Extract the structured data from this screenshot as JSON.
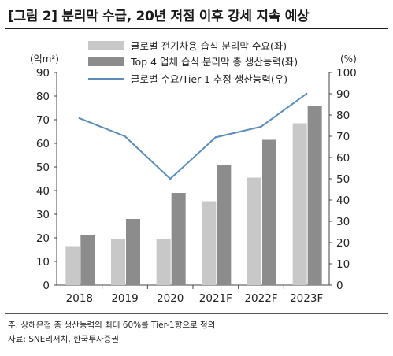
{
  "header": {
    "title": "[그림 2] 분리막 수급, 20년 저점 이후 강세 지속 예상"
  },
  "footer": {
    "note": "주: 상해은첩 총 생산능력의 최대 60%를 Tier-1향으로 정의",
    "source": "자료: SNE리서치, 한국투자증권"
  },
  "chart_data": {
    "type": "bar",
    "title": "[그림 2] 분리막 수급, 20년 저점 이후 강세 지속 예상",
    "categories": [
      "2018",
      "2019",
      "2020",
      "2021F",
      "2022F",
      "2023F"
    ],
    "y_left": {
      "unit": "(억m²)",
      "ylim": [
        0,
        90
      ],
      "ticks": [
        "0",
        "10",
        "20",
        "30",
        "40",
        "50",
        "60",
        "70",
        "80",
        "90"
      ]
    },
    "y_right": {
      "unit": "(%)",
      "ylim": [
        0,
        100
      ],
      "ticks": [
        "0",
        "10",
        "20",
        "30",
        "40",
        "50",
        "60",
        "70",
        "80",
        "90",
        "100"
      ]
    },
    "series": [
      {
        "name": "글로벌 전기차용 습식 분리막 수요(좌)",
        "type": "bar",
        "axis": "left",
        "color": "#c8c8c8",
        "values": [
          16.5,
          19.5,
          19.5,
          35.5,
          45.5,
          68.5
        ]
      },
      {
        "name": "Top 4 업체 습식 분리막 총 생산능력(좌)",
        "type": "bar",
        "axis": "left",
        "color": "#8c8c8c",
        "values": [
          21,
          28,
          39,
          51,
          61.5,
          76
        ]
      },
      {
        "name": "글로벌 수요/Tier-1 추정 생산능력(우)",
        "type": "line",
        "axis": "right",
        "color": "#5b8db8",
        "values": [
          78.5,
          70,
          50,
          69.5,
          74.5,
          90
        ]
      }
    ],
    "grid": false,
    "legend_position": "top-center"
  }
}
